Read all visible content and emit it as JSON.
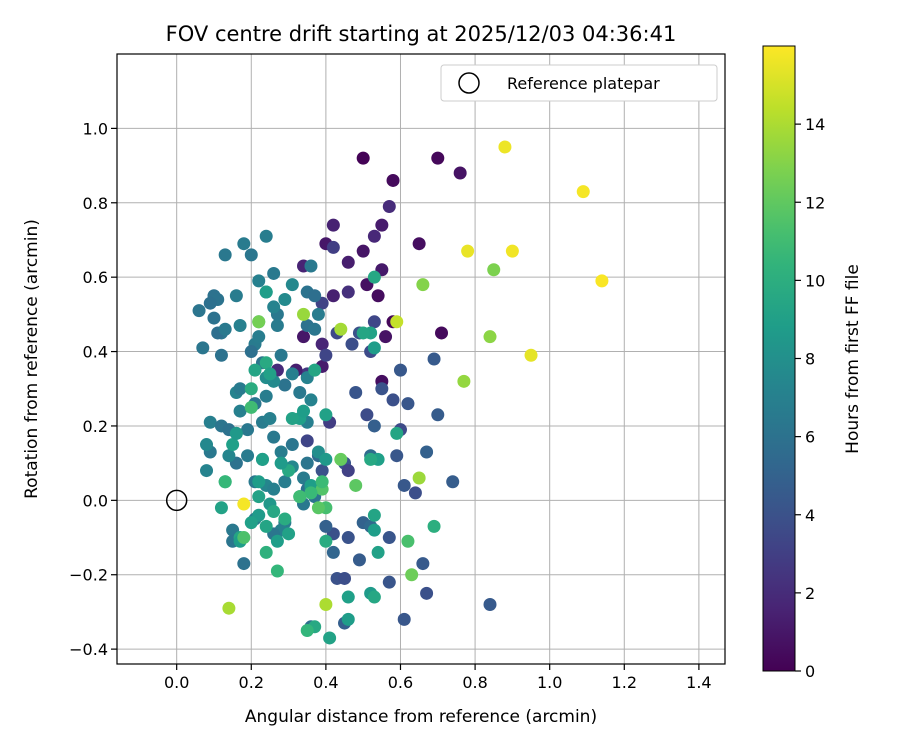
{
  "chart_data": {
    "type": "scatter",
    "title": "FOV centre drift starting at 2025/12/03 04:36:41",
    "xlabel": "Angular distance from reference (arcmin)",
    "ylabel": "Rotation from reference (arcmin)",
    "xlim": [
      -0.16,
      1.47
    ],
    "ylim": [
      -0.44,
      1.2
    ],
    "xticks": [
      0.0,
      0.2,
      0.4,
      0.6,
      0.8,
      1.0,
      1.2,
      1.4
    ],
    "xtick_labels": [
      "0.0",
      "0.2",
      "0.4",
      "0.6",
      "0.8",
      "1.0",
      "1.2",
      "1.4"
    ],
    "yticks": [
      -0.4,
      -0.2,
      0.0,
      0.2,
      0.4,
      0.6,
      0.8,
      1.0
    ],
    "ytick_labels": [
      "−0.4",
      "−0.2",
      "0.0",
      "0.2",
      "0.4",
      "0.6",
      "0.8",
      "1.0"
    ],
    "grid": true,
    "legend": {
      "position": "top-right",
      "entries": [
        "Reference platepar"
      ]
    },
    "reference_point": {
      "x": 0.0,
      "y": 0.0,
      "marker": "open-circle",
      "label": "Reference platepar"
    },
    "colorbar": {
      "label": "Hours from first FF file",
      "colormap": "viridis",
      "range": [
        0,
        16
      ],
      "ticks": [
        0,
        2,
        4,
        6,
        8,
        10,
        12,
        14
      ],
      "tick_labels": [
        "0",
        "2",
        "4",
        "6",
        "8",
        "10",
        "12",
        "14"
      ]
    },
    "points": [
      {
        "x": 0.5,
        "y": 0.92,
        "c": 0.1
      },
      {
        "x": 0.7,
        "y": 0.92,
        "c": 0.3
      },
      {
        "x": 0.76,
        "y": 0.88,
        "c": 0.8
      },
      {
        "x": 0.58,
        "y": 0.86,
        "c": 0.4
      },
      {
        "x": 0.57,
        "y": 0.79,
        "c": 2.0
      },
      {
        "x": 0.42,
        "y": 0.74,
        "c": 1.5
      },
      {
        "x": 0.55,
        "y": 0.74,
        "c": 1.2
      },
      {
        "x": 0.53,
        "y": 0.71,
        "c": 1.8
      },
      {
        "x": 0.4,
        "y": 0.69,
        "c": 1.0
      },
      {
        "x": 0.65,
        "y": 0.69,
        "c": 0.6
      },
      {
        "x": 0.42,
        "y": 0.68,
        "c": 3.0
      },
      {
        "x": 0.5,
        "y": 0.67,
        "c": 0.9
      },
      {
        "x": 0.46,
        "y": 0.64,
        "c": 1.3
      },
      {
        "x": 0.34,
        "y": 0.63,
        "c": 1.6
      },
      {
        "x": 0.55,
        "y": 0.62,
        "c": 1.1
      },
      {
        "x": 0.51,
        "y": 0.58,
        "c": 0.7
      },
      {
        "x": 0.46,
        "y": 0.56,
        "c": 2.2
      },
      {
        "x": 0.42,
        "y": 0.55,
        "c": 1.4
      },
      {
        "x": 0.54,
        "y": 0.55,
        "c": 0.5
      },
      {
        "x": 0.39,
        "y": 0.53,
        "c": 3.2
      },
      {
        "x": 0.71,
        "y": 0.45,
        "c": 0.4
      },
      {
        "x": 0.34,
        "y": 0.44,
        "c": 1.0
      },
      {
        "x": 0.39,
        "y": 0.42,
        "c": 1.7
      },
      {
        "x": 0.56,
        "y": 0.44,
        "c": 0.8
      },
      {
        "x": 0.55,
        "y": 0.32,
        "c": 0.6
      },
      {
        "x": 0.39,
        "y": 0.36,
        "c": 1.2
      },
      {
        "x": 0.35,
        "y": 0.34,
        "c": 2.6
      },
      {
        "x": 0.58,
        "y": 0.48,
        "c": 0.3
      },
      {
        "x": 0.53,
        "y": 0.48,
        "c": 3.4
      },
      {
        "x": 0.27,
        "y": 0.35,
        "c": 1.9
      },
      {
        "x": 0.32,
        "y": 0.35,
        "c": 1.3
      },
      {
        "x": 0.47,
        "y": 0.42,
        "c": 3.8
      },
      {
        "x": 0.52,
        "y": 0.4,
        "c": 3.6
      },
      {
        "x": 0.49,
        "y": 0.45,
        "c": 4.0
      },
      {
        "x": 0.43,
        "y": 0.45,
        "c": 3.5
      },
      {
        "x": 0.4,
        "y": 0.39,
        "c": 3.3
      },
      {
        "x": 0.48,
        "y": 0.29,
        "c": 4.2
      },
      {
        "x": 0.55,
        "y": 0.3,
        "c": 4.1
      },
      {
        "x": 0.58,
        "y": 0.27,
        "c": 3.9
      },
      {
        "x": 0.62,
        "y": 0.26,
        "c": 4.3
      },
      {
        "x": 0.6,
        "y": 0.35,
        "c": 4.4
      },
      {
        "x": 0.69,
        "y": 0.38,
        "c": 4.5
      },
      {
        "x": 0.7,
        "y": 0.23,
        "c": 4.6
      },
      {
        "x": 0.51,
        "y": 0.23,
        "c": 3.7
      },
      {
        "x": 0.53,
        "y": 0.2,
        "c": 4.8
      },
      {
        "x": 0.6,
        "y": 0.19,
        "c": 3.6
      },
      {
        "x": 0.67,
        "y": 0.13,
        "c": 4.9
      },
      {
        "x": 0.41,
        "y": 0.21,
        "c": 2.9
      },
      {
        "x": 0.35,
        "y": 0.16,
        "c": 3.3
      },
      {
        "x": 0.38,
        "y": 0.12,
        "c": 5.5
      },
      {
        "x": 0.45,
        "y": 0.1,
        "c": 4.2
      },
      {
        "x": 0.46,
        "y": 0.08,
        "c": 3.1
      },
      {
        "x": 0.39,
        "y": 0.08,
        "c": 4.0
      },
      {
        "x": 0.61,
        "y": 0.04,
        "c": 4.4
      },
      {
        "x": 0.64,
        "y": 0.02,
        "c": 3.8
      },
      {
        "x": 0.74,
        "y": 0.05,
        "c": 4.7
      },
      {
        "x": 0.59,
        "y": 0.12,
        "c": 4.3
      },
      {
        "x": 0.52,
        "y": 0.12,
        "c": 5.6
      },
      {
        "x": 0.42,
        "y": -0.09,
        "c": 3.9
      },
      {
        "x": 0.46,
        "y": -0.1,
        "c": 4.1
      },
      {
        "x": 0.5,
        "y": -0.06,
        "c": 5.0
      },
      {
        "x": 0.57,
        "y": -0.1,
        "c": 4.2
      },
      {
        "x": 0.66,
        "y": -0.17,
        "c": 4.5
      },
      {
        "x": 0.43,
        "y": -0.21,
        "c": 4.0
      },
      {
        "x": 0.45,
        "y": -0.21,
        "c": 3.8
      },
      {
        "x": 0.49,
        "y": -0.16,
        "c": 4.6
      },
      {
        "x": 0.57,
        "y": -0.22,
        "c": 4.2
      },
      {
        "x": 0.67,
        "y": -0.25,
        "c": 3.9
      },
      {
        "x": 0.61,
        "y": -0.32,
        "c": 4.3
      },
      {
        "x": 0.84,
        "y": -0.28,
        "c": 4.5
      },
      {
        "x": 0.45,
        "y": -0.33,
        "c": 4.8
      },
      {
        "x": 0.42,
        "y": -0.14,
        "c": 5.2
      },
      {
        "x": 0.36,
        "y": -0.34,
        "c": 5.8
      },
      {
        "x": 0.4,
        "y": -0.07,
        "c": 4.9
      },
      {
        "x": 0.52,
        "y": -0.07,
        "c": 5.4
      },
      {
        "x": 0.06,
        "y": 0.51,
        "c": 6.2
      },
      {
        "x": 0.1,
        "y": 0.55,
        "c": 6.0
      },
      {
        "x": 0.13,
        "y": 0.66,
        "c": 6.4
      },
      {
        "x": 0.18,
        "y": 0.69,
        "c": 6.6
      },
      {
        "x": 0.24,
        "y": 0.71,
        "c": 6.8
      },
      {
        "x": 0.2,
        "y": 0.66,
        "c": 6.3
      },
      {
        "x": 0.26,
        "y": 0.61,
        "c": 6.5
      },
      {
        "x": 0.22,
        "y": 0.59,
        "c": 7.0
      },
      {
        "x": 0.24,
        "y": 0.56,
        "c": 7.4
      },
      {
        "x": 0.16,
        "y": 0.55,
        "c": 6.7
      },
      {
        "x": 0.11,
        "y": 0.54,
        "c": 6.1
      },
      {
        "x": 0.09,
        "y": 0.53,
        "c": 5.9
      },
      {
        "x": 0.1,
        "y": 0.49,
        "c": 6.0
      },
      {
        "x": 0.12,
        "y": 0.45,
        "c": 6.2
      },
      {
        "x": 0.11,
        "y": 0.45,
        "c": 5.8
      },
      {
        "x": 0.13,
        "y": 0.46,
        "c": 6.5
      },
      {
        "x": 0.07,
        "y": 0.41,
        "c": 6.3
      },
      {
        "x": 0.12,
        "y": 0.39,
        "c": 6.0
      },
      {
        "x": 0.17,
        "y": 0.47,
        "c": 7.0
      },
      {
        "x": 0.21,
        "y": 0.42,
        "c": 6.6
      },
      {
        "x": 0.2,
        "y": 0.4,
        "c": 5.9
      },
      {
        "x": 0.22,
        "y": 0.44,
        "c": 6.8
      },
      {
        "x": 0.27,
        "y": 0.5,
        "c": 6.4
      },
      {
        "x": 0.26,
        "y": 0.52,
        "c": 7.2
      },
      {
        "x": 0.29,
        "y": 0.54,
        "c": 7.6
      },
      {
        "x": 0.31,
        "y": 0.58,
        "c": 7.5
      },
      {
        "x": 0.35,
        "y": 0.56,
        "c": 6.1
      },
      {
        "x": 0.36,
        "y": 0.63,
        "c": 6.5
      },
      {
        "x": 0.37,
        "y": 0.55,
        "c": 5.8
      },
      {
        "x": 0.38,
        "y": 0.5,
        "c": 6.7
      },
      {
        "x": 0.35,
        "y": 0.47,
        "c": 6.0
      },
      {
        "x": 0.37,
        "y": 0.46,
        "c": 6.3
      },
      {
        "x": 0.27,
        "y": 0.47,
        "c": 6.6
      },
      {
        "x": 0.23,
        "y": 0.37,
        "c": 6.2
      },
      {
        "x": 0.24,
        "y": 0.33,
        "c": 7.8
      },
      {
        "x": 0.28,
        "y": 0.39,
        "c": 6.4
      },
      {
        "x": 0.31,
        "y": 0.34,
        "c": 6.9
      },
      {
        "x": 0.29,
        "y": 0.31,
        "c": 6.1
      },
      {
        "x": 0.26,
        "y": 0.32,
        "c": 7.6
      },
      {
        "x": 0.33,
        "y": 0.29,
        "c": 6.5
      },
      {
        "x": 0.35,
        "y": 0.33,
        "c": 7.1
      },
      {
        "x": 0.24,
        "y": 0.28,
        "c": 6.8
      },
      {
        "x": 0.21,
        "y": 0.26,
        "c": 6.3
      },
      {
        "x": 0.16,
        "y": 0.29,
        "c": 7.2
      },
      {
        "x": 0.17,
        "y": 0.3,
        "c": 6.6
      },
      {
        "x": 0.17,
        "y": 0.24,
        "c": 7.0
      },
      {
        "x": 0.09,
        "y": 0.21,
        "c": 6.9
      },
      {
        "x": 0.12,
        "y": 0.2,
        "c": 6.2
      },
      {
        "x": 0.14,
        "y": 0.19,
        "c": 6.0
      },
      {
        "x": 0.16,
        "y": 0.18,
        "c": 5.8
      },
      {
        "x": 0.19,
        "y": 0.19,
        "c": 6.4
      },
      {
        "x": 0.23,
        "y": 0.21,
        "c": 6.7
      },
      {
        "x": 0.25,
        "y": 0.22,
        "c": 7.0
      },
      {
        "x": 0.26,
        "y": 0.17,
        "c": 6.5
      },
      {
        "x": 0.31,
        "y": 0.15,
        "c": 6.3
      },
      {
        "x": 0.28,
        "y": 0.13,
        "c": 6.8
      },
      {
        "x": 0.23,
        "y": 0.11,
        "c": 6.1
      },
      {
        "x": 0.19,
        "y": 0.12,
        "c": 6.6
      },
      {
        "x": 0.16,
        "y": 0.1,
        "c": 6.0
      },
      {
        "x": 0.14,
        "y": 0.12,
        "c": 7.3
      },
      {
        "x": 0.09,
        "y": 0.13,
        "c": 6.4
      },
      {
        "x": 0.08,
        "y": 0.15,
        "c": 7.5
      },
      {
        "x": 0.08,
        "y": 0.08,
        "c": 7.2
      },
      {
        "x": 0.21,
        "y": 0.05,
        "c": 6.5
      },
      {
        "x": 0.24,
        "y": 0.04,
        "c": 7.3
      },
      {
        "x": 0.26,
        "y": 0.03,
        "c": 7.0
      },
      {
        "x": 0.29,
        "y": 0.05,
        "c": 6.8
      },
      {
        "x": 0.31,
        "y": 0.09,
        "c": 7.4
      },
      {
        "x": 0.34,
        "y": 0.06,
        "c": 6.6
      },
      {
        "x": 0.35,
        "y": 0.1,
        "c": 6.2
      },
      {
        "x": 0.35,
        "y": 0.03,
        "c": 5.9
      },
      {
        "x": 0.36,
        "y": 0.03,
        "c": 7.7
      },
      {
        "x": 0.37,
        "y": 0.01,
        "c": 6.1
      },
      {
        "x": 0.34,
        "y": -0.01,
        "c": 6.4
      },
      {
        "x": 0.29,
        "y": -0.06,
        "c": 6.7
      },
      {
        "x": 0.28,
        "y": -0.08,
        "c": 7.0
      },
      {
        "x": 0.26,
        "y": -0.09,
        "c": 6.3
      },
      {
        "x": 0.21,
        "y": -0.05,
        "c": 6.8
      },
      {
        "x": 0.15,
        "y": -0.08,
        "c": 6.5
      },
      {
        "x": 0.15,
        "y": -0.11,
        "c": 6.2
      },
      {
        "x": 0.18,
        "y": -0.17,
        "c": 6.0
      },
      {
        "x": 0.35,
        "y": 0.21,
        "c": 6.9
      },
      {
        "x": 0.36,
        "y": 0.27,
        "c": 7.1
      },
      {
        "x": 0.38,
        "y": 0.13,
        "c": 7.9
      },
      {
        "x": 0.33,
        "y": 0.22,
        "c": 9.0
      },
      {
        "x": 0.34,
        "y": 0.24,
        "c": 8.8
      },
      {
        "x": 0.31,
        "y": 0.22,
        "c": 9.2
      },
      {
        "x": 0.37,
        "y": 0.35,
        "c": 9.4
      },
      {
        "x": 0.4,
        "y": 0.23,
        "c": 9.1
      },
      {
        "x": 0.4,
        "y": 0.11,
        "c": 8.6
      },
      {
        "x": 0.36,
        "y": 0.04,
        "c": 8.9
      },
      {
        "x": 0.33,
        "y": 0.01,
        "c": 9.3
      },
      {
        "x": 0.3,
        "y": 0.08,
        "c": 9.6
      },
      {
        "x": 0.28,
        "y": 0.1,
        "c": 8.7
      },
      {
        "x": 0.23,
        "y": 0.11,
        "c": 9.0
      },
      {
        "x": 0.22,
        "y": 0.05,
        "c": 8.8
      },
      {
        "x": 0.22,
        "y": 0.01,
        "c": 9.2
      },
      {
        "x": 0.25,
        "y": -0.01,
        "c": 8.5
      },
      {
        "x": 0.26,
        "y": -0.03,
        "c": 9.5
      },
      {
        "x": 0.29,
        "y": -0.05,
        "c": 9.8
      },
      {
        "x": 0.3,
        "y": -0.09,
        "c": 9.1
      },
      {
        "x": 0.27,
        "y": -0.11,
        "c": 8.9
      },
      {
        "x": 0.24,
        "y": -0.07,
        "c": 9.3
      },
      {
        "x": 0.22,
        "y": -0.04,
        "c": 8.7
      },
      {
        "x": 0.2,
        "y": -0.06,
        "c": 9.0
      },
      {
        "x": 0.17,
        "y": -0.1,
        "c": 9.4
      },
      {
        "x": 0.17,
        "y": -0.11,
        "c": 8.8
      },
      {
        "x": 0.12,
        "y": -0.02,
        "c": 9.2
      },
      {
        "x": 0.13,
        "y": 0.05,
        "c": 9.6
      },
      {
        "x": 0.15,
        "y": 0.15,
        "c": 9.0
      },
      {
        "x": 0.16,
        "y": 0.18,
        "c": 8.6
      },
      {
        "x": 0.2,
        "y": 0.3,
        "c": 9.9
      },
      {
        "x": 0.21,
        "y": 0.35,
        "c": 9.3
      },
      {
        "x": 0.24,
        "y": 0.37,
        "c": 9.7
      },
      {
        "x": 0.25,
        "y": 0.34,
        "c": 9.1
      },
      {
        "x": 0.22,
        "y": 0.48,
        "c": 10.0
      },
      {
        "x": 0.24,
        "y": 0.56,
        "c": 8.9
      },
      {
        "x": 0.53,
        "y": 0.6,
        "c": 9.5
      },
      {
        "x": 0.52,
        "y": 0.45,
        "c": 9.2
      },
      {
        "x": 0.53,
        "y": 0.41,
        "c": 8.8
      },
      {
        "x": 0.5,
        "y": 0.45,
        "c": 9.4
      },
      {
        "x": 0.54,
        "y": 0.11,
        "c": 9.0
      },
      {
        "x": 0.52,
        "y": 0.11,
        "c": 9.6
      },
      {
        "x": 0.53,
        "y": -0.04,
        "c": 9.3
      },
      {
        "x": 0.53,
        "y": -0.08,
        "c": 8.9
      },
      {
        "x": 0.54,
        "y": -0.14,
        "c": 9.1
      },
      {
        "x": 0.52,
        "y": -0.25,
        "c": 8.7
      },
      {
        "x": 0.53,
        "y": -0.26,
        "c": 9.5
      },
      {
        "x": 0.46,
        "y": -0.26,
        "c": 9.0
      },
      {
        "x": 0.46,
        "y": -0.32,
        "c": 8.8
      },
      {
        "x": 0.41,
        "y": -0.37,
        "c": 9.2
      },
      {
        "x": 0.37,
        "y": -0.34,
        "c": 9.6
      },
      {
        "x": 0.4,
        "y": -0.11,
        "c": 9.8
      },
      {
        "x": 0.59,
        "y": 0.18,
        "c": 9.4
      },
      {
        "x": 0.69,
        "y": -0.07,
        "c": 10.0
      },
      {
        "x": 0.39,
        "y": 0.03,
        "c": 11.6
      },
      {
        "x": 0.4,
        "y": -0.02,
        "c": 11.2
      },
      {
        "x": 0.38,
        "y": -0.02,
        "c": 11.8
      },
      {
        "x": 0.36,
        "y": 0.02,
        "c": 10.8
      },
      {
        "x": 0.33,
        "y": 0.01,
        "c": 11.0
      },
      {
        "x": 0.27,
        "y": -0.19,
        "c": 10.6
      },
      {
        "x": 0.24,
        "y": -0.14,
        "c": 10.2
      },
      {
        "x": 0.18,
        "y": -0.1,
        "c": 11.4
      },
      {
        "x": 0.13,
        "y": 0.05,
        "c": 10.7
      },
      {
        "x": 0.2,
        "y": 0.25,
        "c": 11.0
      },
      {
        "x": 0.44,
        "y": 0.11,
        "c": 12.2
      },
      {
        "x": 0.62,
        "y": -0.11,
        "c": 11.3
      },
      {
        "x": 0.35,
        "y": -0.35,
        "c": 10.5
      },
      {
        "x": 0.48,
        "y": 0.04,
        "c": 11.9
      },
      {
        "x": 0.63,
        "y": -0.2,
        "c": 12.4
      },
      {
        "x": 0.39,
        "y": 0.05,
        "c": 10.9
      },
      {
        "x": 0.34,
        "y": 0.5,
        "c": 13.5
      },
      {
        "x": 0.44,
        "y": 0.46,
        "c": 13.8
      },
      {
        "x": 0.22,
        "y": 0.48,
        "c": 12.6
      },
      {
        "x": 0.66,
        "y": 0.58,
        "c": 13.0
      },
      {
        "x": 0.65,
        "y": 0.06,
        "c": 13.6
      },
      {
        "x": 0.85,
        "y": 0.62,
        "c": 12.8
      },
      {
        "x": 0.84,
        "y": 0.44,
        "c": 13.2
      },
      {
        "x": 0.77,
        "y": 0.32,
        "c": 13.4
      },
      {
        "x": 0.4,
        "y": -0.28,
        "c": 14.0
      },
      {
        "x": 0.14,
        "y": -0.29,
        "c": 13.9
      },
      {
        "x": 0.59,
        "y": 0.48,
        "c": 14.6
      },
      {
        "x": 0.88,
        "y": 0.95,
        "c": 15.6
      },
      {
        "x": 1.09,
        "y": 0.83,
        "c": 15.8
      },
      {
        "x": 0.78,
        "y": 0.67,
        "c": 15.5
      },
      {
        "x": 0.9,
        "y": 0.67,
        "c": 15.7
      },
      {
        "x": 1.14,
        "y": 0.59,
        "c": 15.9
      },
      {
        "x": 0.95,
        "y": 0.39,
        "c": 15.4
      },
      {
        "x": 0.18,
        "y": -0.01,
        "c": 15.8
      }
    ]
  }
}
